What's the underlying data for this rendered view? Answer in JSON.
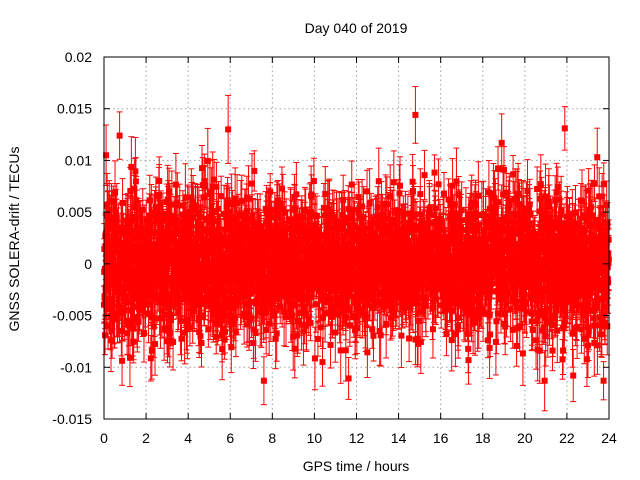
{
  "chart_data": {
    "type": "scatter",
    "title": "Day 040 of 2019",
    "xlabel": "GPS time / hours",
    "ylabel": "GNSS SOLERA-drift / TECUs",
    "xlim": [
      0,
      24
    ],
    "ylim": [
      -0.015,
      0.02
    ],
    "x_ticks": [
      0,
      2,
      4,
      6,
      8,
      10,
      12,
      14,
      16,
      18,
      20,
      22,
      24
    ],
    "x_tick_labels": [
      "0",
      "2",
      "4",
      "6",
      "8",
      "10",
      "12",
      "14",
      "16",
      "18",
      "20",
      "22",
      "24"
    ],
    "y_ticks": [
      -0.015,
      -0.01,
      -0.005,
      0,
      0.005,
      0.01,
      0.015,
      0.02
    ],
    "y_tick_labels": [
      "-0.015",
      "-0.01",
      "-0.005",
      "0",
      "0.005",
      "0.01",
      "0.015",
      "0.02"
    ],
    "grid": true,
    "series_color": "#ff0000",
    "series": [
      {
        "name": "SOLERA drift",
        "x_start": 0.0,
        "x_step": 0.0083333,
        "n_points": 2880,
        "mean": 0.0,
        "std": 0.0033,
        "min_observed": -0.0113,
        "max_observed": 0.0144,
        "error_bar_mean": 0.0025,
        "notable_points": [
          {
            "x": 0.1,
            "y": 0.0105
          },
          {
            "x": 5.9,
            "y": 0.013
          },
          {
            "x": 7.6,
            "y": -0.0113
          },
          {
            "x": 14.8,
            "y": 0.0144
          },
          {
            "x": 18.9,
            "y": 0.0117
          },
          {
            "x": 21.9,
            "y": 0.0131
          },
          {
            "x": 22.3,
            "y": -0.0108
          }
        ]
      }
    ]
  }
}
